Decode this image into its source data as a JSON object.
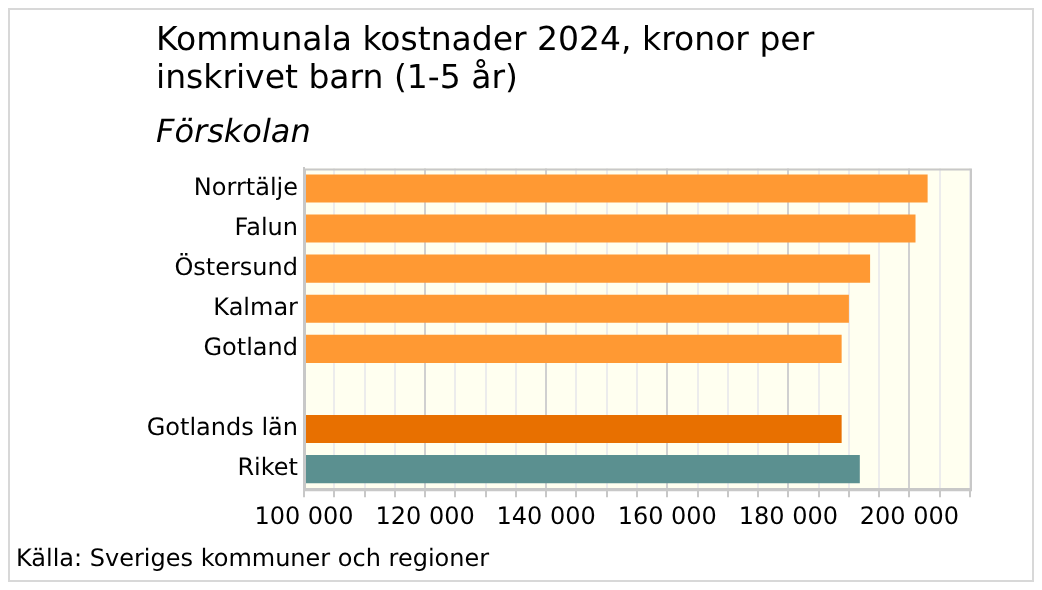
{
  "chart_data": {
    "type": "bar",
    "orientation": "horizontal",
    "title": "Kommunala kostnader 2024, kronor per inskrivet barn (1-5 år)",
    "subtitle": "Förskolan",
    "categories": [
      "Norrtälje",
      "Falun",
      "Östersund",
      "Kalmar",
      "Gotland",
      null,
      "Gotlands län",
      "Riket"
    ],
    "values": [
      203000,
      201000,
      193500,
      190000,
      188800,
      null,
      188800,
      191800
    ],
    "colors": [
      "#ff9933",
      "#ff9933",
      "#ff9933",
      "#ff9933",
      "#ff9933",
      "#ff9933",
      "#e87000",
      "#5b9090"
    ],
    "xlim": [
      100000,
      210000
    ],
    "xticks": [
      {
        "value": 100000,
        "label": "100 000"
      },
      {
        "value": 105000,
        "label": null
      },
      {
        "value": 110000,
        "label": null
      },
      {
        "value": 115000,
        "label": null
      },
      {
        "value": 120000,
        "label": "120 000"
      },
      {
        "value": 125000,
        "label": null
      },
      {
        "value": 130000,
        "label": null
      },
      {
        "value": 135000,
        "label": null
      },
      {
        "value": 140000,
        "label": "140 000"
      },
      {
        "value": 145000,
        "label": null
      },
      {
        "value": 150000,
        "label": null
      },
      {
        "value": 155000,
        "label": null
      },
      {
        "value": 160000,
        "label": "160 000"
      },
      {
        "value": 165000,
        "label": null
      },
      {
        "value": 170000,
        "label": null
      },
      {
        "value": 175000,
        "label": null
      },
      {
        "value": 180000,
        "label": "180 000"
      },
      {
        "value": 185000,
        "label": null
      },
      {
        "value": 190000,
        "label": null
      },
      {
        "value": 195000,
        "label": null
      },
      {
        "value": 200000,
        "label": "200 000"
      },
      {
        "value": 205000,
        "label": null
      },
      {
        "value": 210000,
        "label": null
      }
    ],
    "grid": "x",
    "annotations": [
      "Källa: Sveriges kommuner och regioner"
    ]
  }
}
